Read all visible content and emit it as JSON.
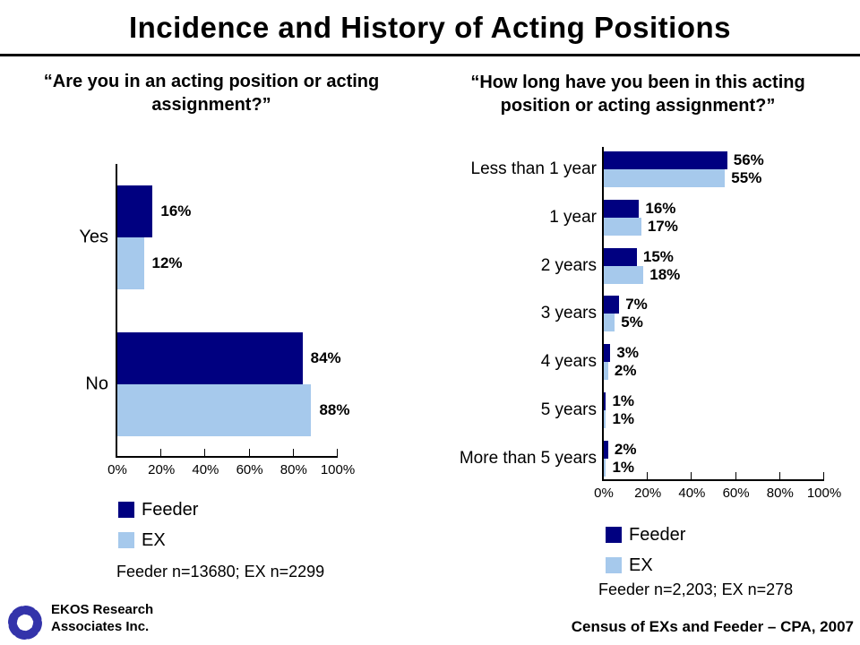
{
  "title": "Incidence and History of Acting Positions",
  "colors": {
    "feeder": "#000080",
    "ex": "#A6C9EC",
    "logo": "#3333AA"
  },
  "legend": {
    "feeder": "Feeder",
    "ex": "EX"
  },
  "chart_data": [
    {
      "type": "bar",
      "orientation": "horizontal",
      "title": "“Are you in an acting position or acting assignment?”",
      "categories": [
        "Yes",
        "No"
      ],
      "series": [
        {
          "name": "Feeder",
          "values": [
            16,
            84
          ]
        },
        {
          "name": "EX",
          "values": [
            12,
            88
          ]
        }
      ],
      "xlim": [
        0,
        100
      ],
      "xticks": [
        "0%",
        "20%",
        "40%",
        "60%",
        "80%",
        "100%"
      ],
      "data_labels": true,
      "grid": false,
      "legend_position": "below-left",
      "note": "Feeder n=13680; EX n=2299"
    },
    {
      "type": "bar",
      "orientation": "horizontal",
      "title": "“How long have you been in this acting position or acting assignment?”",
      "categories": [
        "Less than 1 year",
        "1 year",
        "2 years",
        "3 years",
        "4 years",
        "5 years",
        "More than 5 years"
      ],
      "series": [
        {
          "name": "Feeder",
          "values": [
            56,
            16,
            15,
            7,
            3,
            1,
            2
          ]
        },
        {
          "name": "EX",
          "values": [
            55,
            17,
            18,
            5,
            2,
            1,
            1
          ]
        }
      ],
      "xlim": [
        0,
        100
      ],
      "xticks": [
        "0%",
        "20%",
        "40%",
        "60%",
        "80%",
        "100%"
      ],
      "data_labels": true,
      "grid": false,
      "legend_position": "below-left",
      "note": "Feeder n=2,203; EX n=278"
    }
  ],
  "footer": {
    "org_line1": "EKOS Research",
    "org_line2": "Associates Inc.",
    "source": "Census of EXs and Feeder – CPA, 2007"
  }
}
